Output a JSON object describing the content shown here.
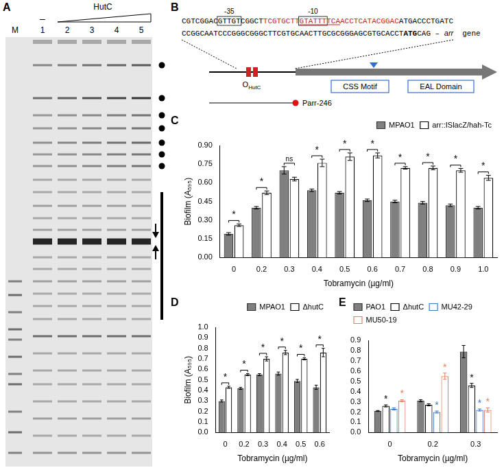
{
  "panel_a": {
    "letter": "A",
    "marker_lane": "M",
    "lanes": [
      "1",
      "2",
      "3",
      "4",
      "5"
    ],
    "control_label": "–",
    "protein": "HutC"
  },
  "panel_b": {
    "letter": "B",
    "line1": [
      {
        "text": "CGTCGGAC"
      },
      {
        "text": "GTTGT",
        "boxed": true,
        "label": "-35"
      },
      {
        "text": "CGGCT"
      },
      {
        "text": "TCGTGCTT",
        "color": "#cc2222"
      },
      {
        "text": "GTATTT",
        "color": "#cc2222",
        "boxed": true,
        "underlined": true,
        "label": "-10"
      },
      {
        "text": "TCA",
        "color": "#cc2222",
        "underlined": true
      },
      {
        "text": "ACCTCATACGGAC",
        "color": "#cc2222"
      },
      {
        "text": "ATGACCCTGATC"
      }
    ],
    "line2": [
      {
        "text": "CCGGCAATCCCGGGCGGGCTTCGTGCAACTTGCGCGGGAGCGTGCACCT"
      },
      {
        "text": "ATG",
        "bold": true
      },
      {
        "text": "CAG – "
      },
      {
        "text": "arr",
        "italic": true
      },
      {
        "text": " gene"
      }
    ],
    "operator": {
      "text": "O",
      "sub": "HutC"
    },
    "domains": [
      "CSS Motif",
      "EAL Domain"
    ],
    "promoter": "Parr-246"
  },
  "chart_data": [
    {
      "panel": "C",
      "type": "bar",
      "x_label": "Tobramycin (µg/ml)",
      "y_label": "Biofilm (A₅₉₅)",
      "categories": [
        "0",
        "0.2",
        "0.3",
        "0.4",
        "0.5",
        "0.6",
        "0.7",
        "0.8",
        "0.9",
        "1.0"
      ],
      "ylim": [
        0,
        0.9
      ],
      "yticks": [
        {
          "value": 0,
          "label": "0.00"
        },
        {
          "value": 0.15,
          "label": "0.15"
        },
        {
          "value": 0.3,
          "label": "0.30"
        },
        {
          "value": 0.45,
          "label": "0.45"
        },
        {
          "value": 0.6,
          "label": "0.60"
        },
        {
          "value": 0.75,
          "label": "0.75"
        },
        {
          "value": 0.9,
          "label": "0.90"
        }
      ],
      "grid": false,
      "legend": "top-right",
      "significance": [
        "*",
        "*",
        "ns",
        "*",
        "*",
        "*",
        "*",
        "*",
        "*",
        "*"
      ],
      "series": [
        {
          "name": "MPAO1",
          "color": "#808080",
          "marker": "filled",
          "values": [
            0.19,
            0.4,
            0.7,
            0.54,
            0.52,
            0.46,
            0.45,
            0.44,
            0.42,
            0.4
          ],
          "errors": [
            0.01,
            0.01,
            0.03,
            0.01,
            0.01,
            0.01,
            0.01,
            0.01,
            0.01,
            0.01
          ]
        },
        {
          "name": "arr::ISlacZ/hah-Tc",
          "color": "#000000",
          "marker": "open",
          "values": [
            0.26,
            0.52,
            0.63,
            0.76,
            0.81,
            0.82,
            0.72,
            0.72,
            0.7,
            0.64
          ],
          "errors": [
            0.01,
            0.015,
            0.015,
            0.03,
            0.03,
            0.02,
            0.01,
            0.015,
            0.015,
            0.02
          ]
        }
      ]
    },
    {
      "panel": "D",
      "type": "bar",
      "x_label": "Tobramycin (µg/ml)",
      "y_label": "Biofilm (A₅₉₅)",
      "categories": [
        "0",
        "0.2",
        "0.3",
        "0.4",
        "0.5",
        "0.6"
      ],
      "ylim": [
        0,
        1
      ],
      "yticks": [
        {
          "value": 0,
          "label": "0.0"
        },
        {
          "value": 0.1,
          "label": "0.1"
        },
        {
          "value": 0.2,
          "label": "0.2"
        },
        {
          "value": 0.3,
          "label": "0.3"
        },
        {
          "value": 0.4,
          "label": "0.4"
        },
        {
          "value": 0.5,
          "label": "0.5"
        },
        {
          "value": 0.6,
          "label": "0.6"
        },
        {
          "value": 0.7,
          "label": "0.7"
        },
        {
          "value": 0.8,
          "label": "0.8"
        },
        {
          "value": 0.9,
          "label": "0.9"
        },
        {
          "value": 1,
          "label": "1.0"
        }
      ],
      "grid": false,
      "legend": "top-right",
      "significance": [
        "*",
        "*",
        "*",
        "*",
        "*",
        "*"
      ],
      "series": [
        {
          "name": "MPAO1",
          "color": "#808080",
          "marker": "filled",
          "values": [
            0.3,
            0.42,
            0.55,
            0.56,
            0.49,
            0.43
          ],
          "errors": [
            0.01,
            0.01,
            0.01,
            0.015,
            0.015,
            0.02
          ]
        },
        {
          "name": "ΔhutC",
          "color": "#000000",
          "marker": "open",
          "values": [
            0.43,
            0.55,
            0.7,
            0.76,
            0.7,
            0.76
          ],
          "errors": [
            0.01,
            0.01,
            0.02,
            0.02,
            0.01,
            0.04
          ]
        }
      ]
    },
    {
      "panel": "E",
      "type": "bar",
      "x_label": "Tobramycin (µg/ml)",
      "categories": [
        "0",
        "0.2",
        "0.3"
      ],
      "ylim": [
        0,
        0.9
      ],
      "yticks": [
        {
          "value": 0,
          "label": "0.0"
        },
        {
          "value": 0.1,
          "label": "0.1"
        },
        {
          "value": 0.2,
          "label": "0.2"
        },
        {
          "value": 0.3,
          "label": "0.3"
        },
        {
          "value": 0.4,
          "label": "0.4"
        },
        {
          "value": 0.5,
          "label": "0.5"
        },
        {
          "value": 0.6,
          "label": "0.6"
        },
        {
          "value": 0.7,
          "label": "0.7"
        },
        {
          "value": 0.8,
          "label": "0.8"
        },
        {
          "value": 0.9,
          "label": "0.9"
        }
      ],
      "grid": false,
      "legend": "top-left",
      "series": [
        {
          "name": "PAO1",
          "color": "#808080",
          "marker": "filled",
          "values": [
            0.21,
            0.31,
            0.79
          ],
          "errors": [
            0.005,
            0.01,
            0.06
          ]
        },
        {
          "name": "ΔhutC",
          "color": "#000000",
          "marker": "open",
          "values": [
            0.26,
            0.27,
            0.46
          ],
          "errors": [
            0.01,
            0.01,
            0.02
          ],
          "significance": [
            "*",
            null,
            "*"
          ]
        },
        {
          "name": "MU42-29",
          "color": "#3c78c8",
          "marker": "open",
          "values": [
            0.23,
            0.2,
            0.22
          ],
          "errors": [
            0.01,
            0.01,
            0.01
          ],
          "significance": [
            null,
            "*",
            "*"
          ]
        },
        {
          "name": "MU50-19",
          "color": "#e0825f",
          "marker": "open",
          "values": [
            0.31,
            0.55,
            0.22
          ],
          "errors": [
            0.01,
            0.03,
            0.02
          ],
          "significance": [
            "*",
            "*",
            "*"
          ]
        }
      ]
    }
  ]
}
